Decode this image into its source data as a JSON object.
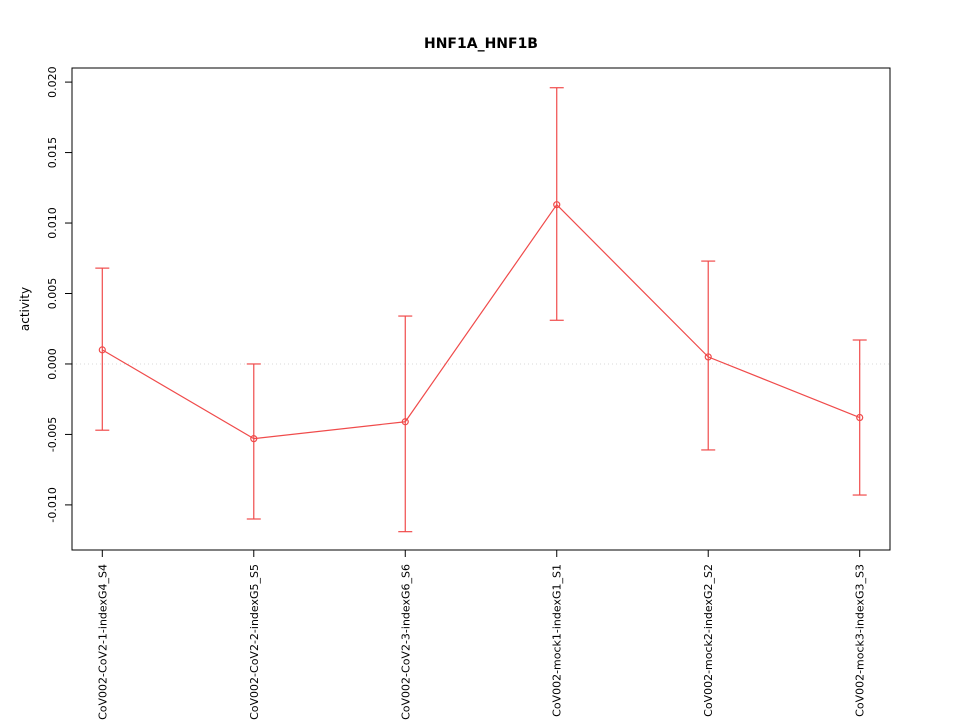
{
  "chart_data": {
    "type": "line",
    "title": "HNF1A_HNF1B",
    "xlabel": "",
    "ylabel": "activity",
    "marker": "open-circle",
    "legend": "none",
    "grid": false,
    "categories": [
      "CoV002-CoV2-1-indexG4_S4",
      "CoV002-CoV2-2-indexG5_S5",
      "CoV002-CoV2-3-indexG6_S6",
      "CoV002-mock1-indexG1_S1",
      "CoV002-mock2-indexG2_S2",
      "CoV002-mock3-indexG3_S3"
    ],
    "values": [
      0.001,
      -0.0053,
      -0.0041,
      0.0113,
      0.0005,
      -0.0038
    ],
    "error_low": [
      -0.0047,
      -0.011,
      -0.0119,
      0.0031,
      -0.0061,
      -0.0093
    ],
    "error_high": [
      0.0068,
      0.0,
      0.0034,
      0.0196,
      0.0073,
      0.0017
    ],
    "yticks": [
      -0.01,
      -0.005,
      0.0,
      0.005,
      0.01,
      0.015,
      0.02
    ],
    "ytick_labels": [
      "-0.010",
      "-0.005",
      "0.000",
      "0.005",
      "0.010",
      "0.015",
      "0.020"
    ],
    "ylim": [
      -0.0132,
      0.021
    ],
    "reference_line": 0,
    "series_color": "#f04b4b",
    "reference_color": "#d9d9d9",
    "axis_color": "#000000"
  }
}
